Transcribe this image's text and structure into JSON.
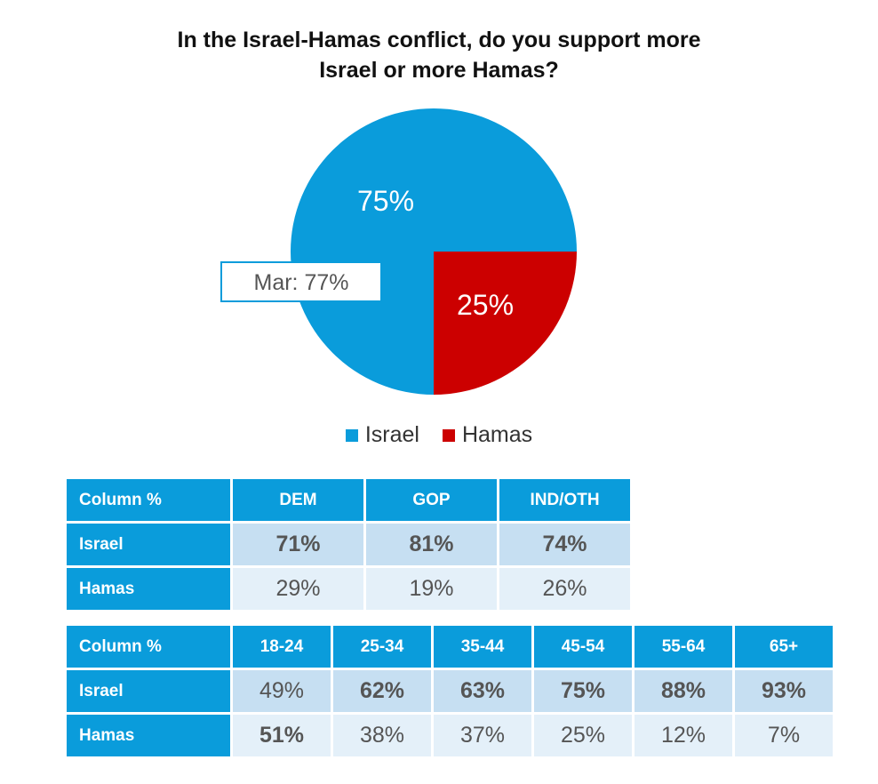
{
  "chart_data": {
    "type": "pie",
    "title_line1": "In the Israel-Hamas conflict, do you support more",
    "title_line2": "Israel or more Hamas?",
    "slices": [
      {
        "label": "Israel",
        "value": 75,
        "display": "75%",
        "color": "#0a9cdb"
      },
      {
        "label": "Hamas",
        "value": 25,
        "display": "25%",
        "color": "#cc0000"
      }
    ],
    "annotation": "Mar: 77%",
    "legend_position": "bottom"
  },
  "colors": {
    "header_bg": "#0a9cdb",
    "israel_row_bg": "#c6dff2",
    "hamas_row_bg": "#e4f0f9"
  },
  "party_table": {
    "corner": "Column %",
    "columns": [
      "DEM",
      "GOP",
      "IND/OTH"
    ],
    "rows": [
      {
        "label": "Israel",
        "values": [
          "71%",
          "81%",
          "74%"
        ],
        "bold": [
          true,
          true,
          true
        ]
      },
      {
        "label": "Hamas",
        "values": [
          "29%",
          "19%",
          "26%"
        ],
        "bold": [
          false,
          false,
          false
        ]
      }
    ]
  },
  "age_table": {
    "corner": "Column %",
    "columns": [
      "18-24",
      "25-34",
      "35-44",
      "45-54",
      "55-64",
      "65+"
    ],
    "rows": [
      {
        "label": "Israel",
        "values": [
          "49%",
          "62%",
          "63%",
          "75%",
          "88%",
          "93%"
        ],
        "bold": [
          false,
          true,
          true,
          true,
          true,
          true
        ]
      },
      {
        "label": "Hamas",
        "values": [
          "51%",
          "38%",
          "37%",
          "25%",
          "12%",
          "7%"
        ],
        "bold": [
          true,
          false,
          false,
          false,
          false,
          false
        ]
      }
    ]
  }
}
